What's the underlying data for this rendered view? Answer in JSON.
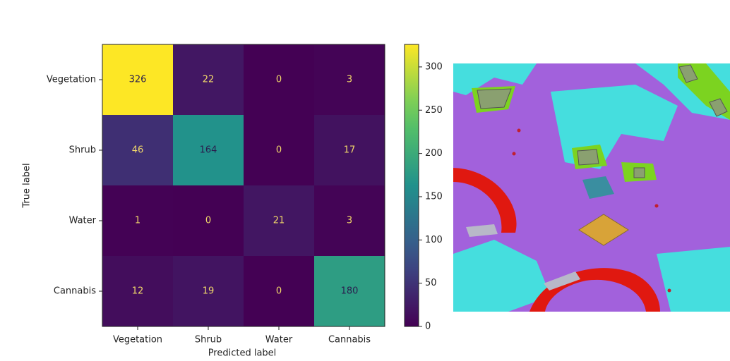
{
  "chart_data": {
    "type": "heatmap",
    "x_label": "Predicted label",
    "y_label": "True label",
    "x_categories": [
      "Vegetation",
      "Shrub",
      "Water",
      "Cannabis"
    ],
    "y_categories": [
      "Vegetation",
      "Shrub",
      "Water",
      "Cannabis"
    ],
    "z": [
      [
        326,
        22,
        0,
        3
      ],
      [
        46,
        164,
        0,
        17
      ],
      [
        1,
        0,
        21,
        3
      ],
      [
        12,
        19,
        0,
        180
      ]
    ],
    "colormap": "viridis",
    "clim": [
      0,
      326
    ],
    "cticks": [
      0,
      50,
      100,
      150,
      200,
      250,
      300
    ]
  }
}
